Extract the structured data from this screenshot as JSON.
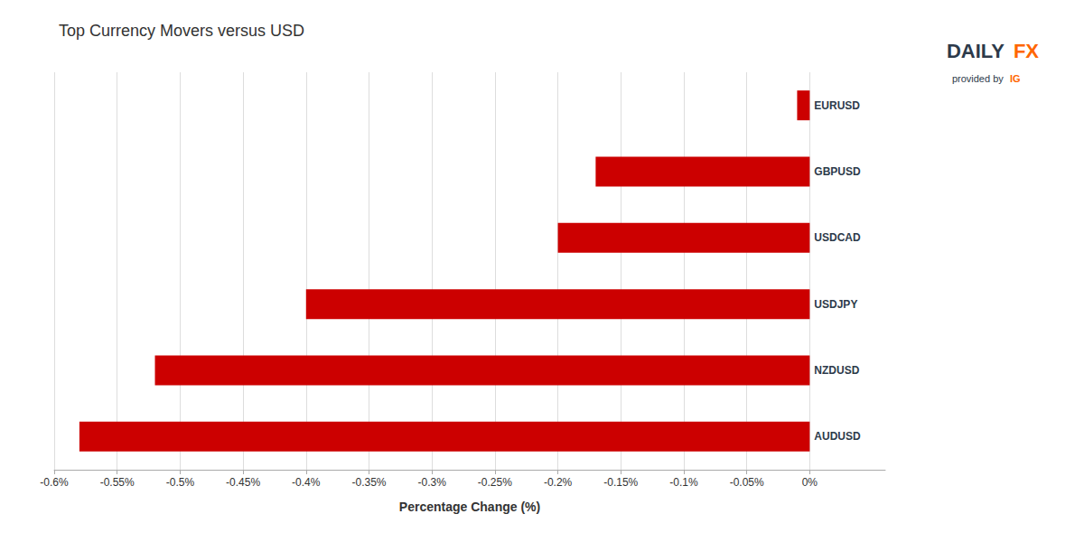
{
  "chart_data": {
    "type": "bar",
    "orientation": "horizontal",
    "title": "Top Currency Movers versus USD",
    "xlabel": "Percentage Change (%)",
    "categories": [
      "AUDUSD",
      "NZDUSD",
      "USDJPY",
      "USDCAD",
      "GBPUSD",
      "EURUSD"
    ],
    "values": [
      -0.58,
      -0.52,
      -0.4,
      -0.2,
      -0.17,
      -0.01
    ],
    "color": "#CC0000",
    "xlim": [
      -0.6,
      0.06
    ],
    "xticks": [
      {
        "value": -0.6,
        "label": "-0.6%"
      },
      {
        "value": -0.55,
        "label": "-0.55%"
      },
      {
        "value": -0.5,
        "label": "-0.5%"
      },
      {
        "value": -0.45,
        "label": "-0.45%"
      },
      {
        "value": -0.4,
        "label": "-0.4%"
      },
      {
        "value": -0.35,
        "label": "-0.35%"
      },
      {
        "value": -0.3,
        "label": "-0.3%"
      },
      {
        "value": -0.25,
        "label": "-0.25%"
      },
      {
        "value": -0.2,
        "label": "-0.2%"
      },
      {
        "value": -0.15,
        "label": "-0.15%"
      },
      {
        "value": -0.1,
        "label": "-0.1%"
      },
      {
        "value": -0.05,
        "label": "-0.05%"
      },
      {
        "value": 0,
        "label": "0%"
      }
    ],
    "grid": true,
    "annotations": [
      {
        "text": "DAILY",
        "color": "#2d3a4a"
      },
      {
        "text": "FX",
        "color": "#FF6600"
      },
      {
        "text": "provided by ",
        "color": "#2d3a4a"
      },
      {
        "text": "IG",
        "color": "#FF6600"
      }
    ]
  }
}
